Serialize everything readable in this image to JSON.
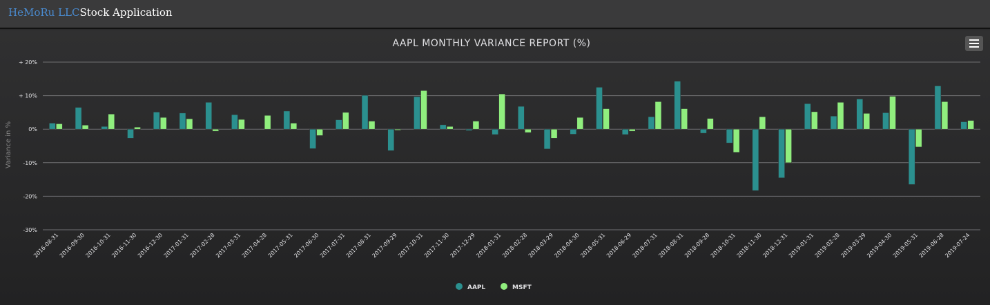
{
  "navbar": {
    "company": "HeMoRu LLC",
    "app_title": "Stock Application"
  },
  "colors": {
    "aapl": "#2b908f",
    "msft": "#90ee7e",
    "grid": "#707073",
    "text": "#e0e0e3"
  },
  "chart_data": {
    "type": "bar",
    "title": "AAPL MONTHLY VARIANCE REPORT (%)",
    "ylabel": "Variance in %",
    "ylim": [
      -30,
      20
    ],
    "yticks": [
      "+ 20%",
      "+ 10%",
      "0%",
      "-10%",
      "-20%",
      "-30%"
    ],
    "legend_position": "bottom-center",
    "categories": [
      "2016-08-31",
      "2016-09-30",
      "2016-10-31",
      "2016-11-30",
      "2016-12-30",
      "2017-01-31",
      "2017-02-28",
      "2017-03-31",
      "2017-04-28",
      "2017-05-31",
      "2017-06-30",
      "2017-07-31",
      "2017-08-31",
      "2017-09-29",
      "2017-10-31",
      "2017-11-30",
      "2017-12-29",
      "2018-01-31",
      "2018-02-28",
      "2018-03-29",
      "2018-04-30",
      "2018-05-31",
      "2018-06-29",
      "2018-07-31",
      "2018-08-31",
      "2018-09-28",
      "2018-10-31",
      "2018-11-30",
      "2018-12-31",
      "2019-01-31",
      "2019-02-28",
      "2019-03-29",
      "2019-04-30",
      "2019-05-31",
      "2019-06-28",
      "2019-07-24"
    ],
    "series": [
      {
        "name": "AAPL",
        "values": [
          1.8,
          6.5,
          0.8,
          -2.7,
          5.1,
          4.8,
          8.0,
          4.3,
          0,
          5.4,
          -5.8,
          2.8,
          10.1,
          -6.4,
          9.7,
          1.3,
          -0.4,
          -1.6,
          6.8,
          -5.9,
          -1.5,
          12.5,
          -1.6,
          3.7,
          14.3,
          -1.2,
          -4.1,
          -18.3,
          -14.5,
          7.6,
          3.9,
          9.0,
          4.9,
          -16.5,
          12.9,
          2.2
        ]
      },
      {
        "name": "MSFT",
        "values": [
          1.6,
          1.2,
          4.5,
          0.6,
          3.5,
          3.1,
          -0.6,
          2.9,
          4.1,
          1.8,
          -1.9,
          5.0,
          2.4,
          -0.3,
          11.5,
          0.8,
          2.4,
          10.5,
          -1.0,
          -2.7,
          3.5,
          6.1,
          -0.6,
          8.2,
          6.1,
          3.2,
          -6.9,
          3.7,
          -10.0,
          5.2,
          8.0,
          4.7,
          9.8,
          -5.3,
          8.2,
          2.6
        ]
      }
    ]
  }
}
